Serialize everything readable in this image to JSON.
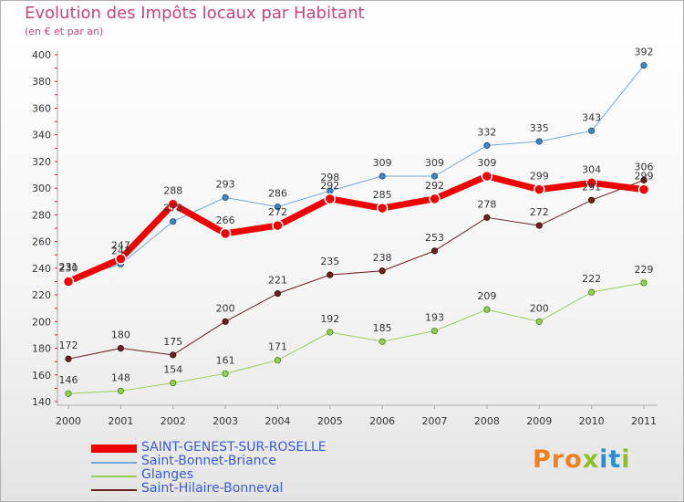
{
  "chart_data": {
    "type": "line",
    "title": "Evolution des Impôts locaux par Habitant",
    "subtitle": "(en € et par an)",
    "xlabel": "",
    "ylabel": "",
    "ylim": [
      140,
      400
    ],
    "yticks": [
      "140",
      "160",
      "180",
      "200",
      "220",
      "240",
      "260",
      "280",
      "300",
      "320",
      "340",
      "360",
      "380",
      "400"
    ],
    "x": [
      "2000",
      "2001",
      "2002",
      "2003",
      "2004",
      "2005",
      "2006",
      "2007",
      "2008",
      "2009",
      "2010",
      "2011"
    ],
    "grid": false,
    "legend_position": "bottom-left",
    "series": [
      {
        "name": "SAINT-GENEST-SUR-ROSELLE",
        "color": "#ee0000",
        "values": [
          230,
          247,
          288,
          266,
          272,
          292,
          285,
          292,
          309,
          299,
          304,
          299
        ]
      },
      {
        "name": "Saint-Bonnet-Briance",
        "color": "#6fa8dc",
        "values": [
          231,
          243,
          275,
          293,
          286,
          298,
          309,
          309,
          332,
          335,
          343,
          392
        ]
      },
      {
        "name": "Glanges",
        "color": "#9acd5a",
        "values": [
          146,
          148,
          154,
          161,
          171,
          192,
          185,
          193,
          209,
          200,
          222,
          229
        ]
      },
      {
        "name": "Saint-Hilaire-Bonneval",
        "color": "#6b1f1f",
        "values": [
          172,
          180,
          175,
          200,
          221,
          235,
          238,
          253,
          278,
          272,
          291,
          306
        ]
      }
    ]
  },
  "logo_text": "Proxiti"
}
